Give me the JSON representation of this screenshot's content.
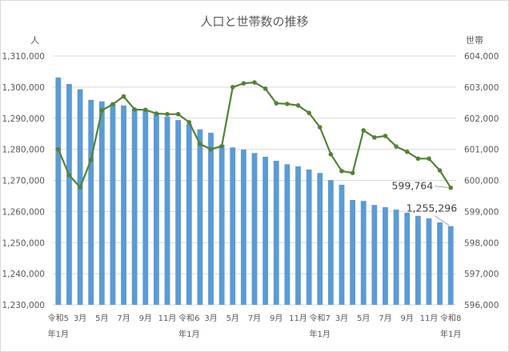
{
  "chart_data": {
    "type": "bar+line",
    "title": "人口と世帯数の推移",
    "left_axis": {
      "label": "人",
      "min": 1230000,
      "max": 1310000,
      "step": 10000,
      "ticks": [
        "1,230,000",
        "1,240,000",
        "1,250,000",
        "1,260,000",
        "1,270,000",
        "1,280,000",
        "1,290,000",
        "1,300,000",
        "1,310,000"
      ]
    },
    "right_axis": {
      "label": "世帯",
      "min": 596000,
      "max": 604000,
      "step": 1000,
      "ticks": [
        "596,000",
        "597,000",
        "598,000",
        "599,000",
        "600,000",
        "601,000",
        "602,000",
        "603,000",
        "604,000"
      ]
    },
    "x_tick_labels": [
      {
        "i": 0,
        "line1": "令和5",
        "line2": "年1月"
      },
      {
        "i": 2,
        "line1": "3月",
        "line2": ""
      },
      {
        "i": 4,
        "line1": "5月",
        "line2": ""
      },
      {
        "i": 6,
        "line1": "7月",
        "line2": ""
      },
      {
        "i": 8,
        "line1": "9月",
        "line2": ""
      },
      {
        "i": 10,
        "line1": "11月",
        "line2": ""
      },
      {
        "i": 12,
        "line1": "令和6",
        "line2": "年1月"
      },
      {
        "i": 14,
        "line1": "3月",
        "line2": ""
      },
      {
        "i": 16,
        "line1": "5月",
        "line2": ""
      },
      {
        "i": 18,
        "line1": "7月",
        "line2": ""
      },
      {
        "i": 20,
        "line1": "9月",
        "line2": ""
      },
      {
        "i": 22,
        "line1": "11月",
        "line2": ""
      },
      {
        "i": 24,
        "line1": "令和7",
        "line2": "年1月"
      },
      {
        "i": 26,
        "line1": "3月",
        "line2": ""
      },
      {
        "i": 28,
        "line1": "5月",
        "line2": ""
      },
      {
        "i": 30,
        "line1": "7月",
        "line2": ""
      },
      {
        "i": 32,
        "line1": "9月",
        "line2": ""
      },
      {
        "i": 34,
        "line1": "11月",
        "line2": ""
      },
      {
        "i": 36,
        "line1": "令和8",
        "line2": "年1月"
      }
    ],
    "categories": [
      "R5-01",
      "R5-02",
      "R5-03",
      "R5-04",
      "R5-05",
      "R5-06",
      "R5-07",
      "R5-08",
      "R5-09",
      "R5-10",
      "R5-11",
      "R5-12",
      "R6-01",
      "R6-02",
      "R6-03",
      "R6-04",
      "R6-05",
      "R6-06",
      "R6-07",
      "R6-08",
      "R6-09",
      "R6-10",
      "R6-11",
      "R6-12",
      "R7-01",
      "R7-02",
      "R7-03",
      "R7-04",
      "R7-05",
      "R7-06",
      "R7-07",
      "R7-08",
      "R7-09",
      "R7-10",
      "R7-11",
      "R7-12",
      "R8-01"
    ],
    "series": [
      {
        "name": "人口",
        "type": "bar",
        "axis": "left",
        "color": "#5b9bd5",
        "values": [
          1303100,
          1301000,
          1299300,
          1295900,
          1295400,
          1294600,
          1294100,
          1293000,
          1292300,
          1291200,
          1290500,
          1289400,
          1288200,
          1286400,
          1285300,
          1281400,
          1280600,
          1279900,
          1278800,
          1277600,
          1276300,
          1275200,
          1274500,
          1273500,
          1272400,
          1270100,
          1268600,
          1263700,
          1263400,
          1262100,
          1261400,
          1260600,
          1259600,
          1258600,
          1257800,
          1256500,
          1255296
        ]
      },
      {
        "name": "世帯数",
        "type": "line",
        "axis": "right",
        "color": "#548235",
        "values": [
          601000,
          600170,
          599780,
          600660,
          602250,
          602450,
          602700,
          602280,
          602270,
          602150,
          602130,
          602130,
          601870,
          601170,
          601000,
          601100,
          603000,
          603120,
          603150,
          602950,
          602480,
          602460,
          602410,
          602170,
          601710,
          600840,
          600300,
          600240,
          601610,
          601380,
          601430,
          601090,
          600920,
          600700,
          600700,
          600320,
          599764
        ]
      }
    ],
    "annotations": [
      {
        "text": "599,764",
        "series": "世帯数",
        "index": 36
      },
      {
        "text": "1,255,296",
        "series": "人口",
        "index": 36
      }
    ],
    "grid": true,
    "legend": "none"
  }
}
